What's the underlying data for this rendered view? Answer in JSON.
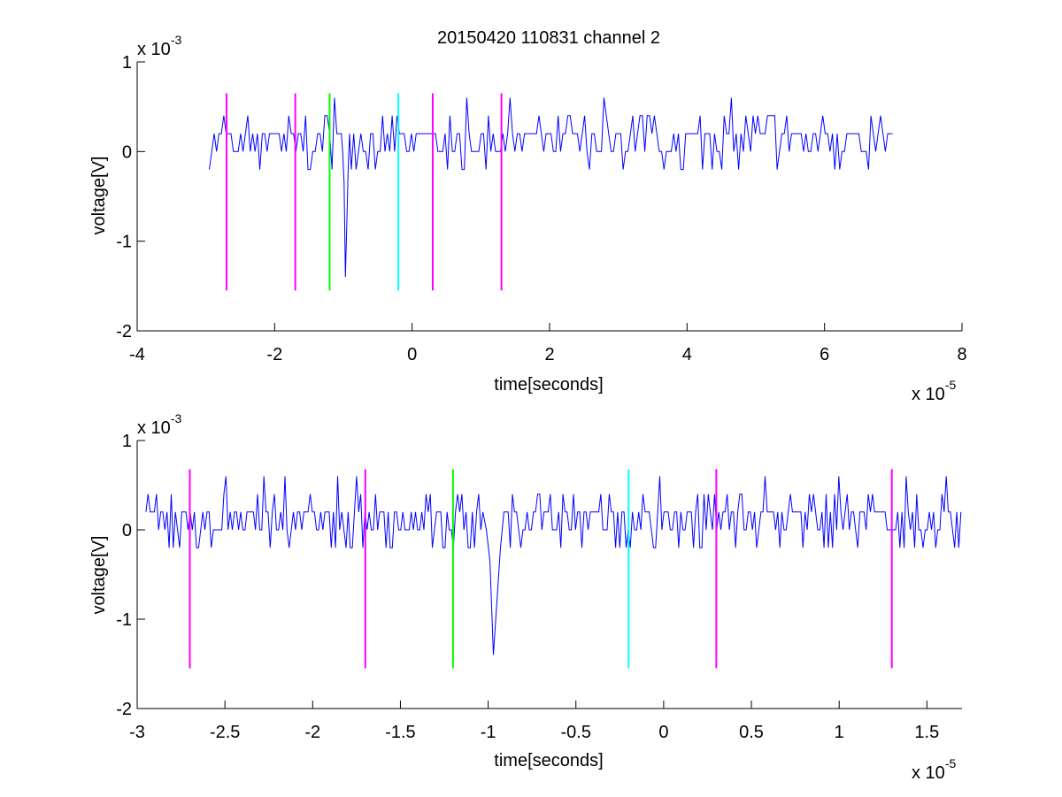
{
  "figure_title": "20150420 110831 channel 2",
  "chart_data": [
    {
      "type": "line",
      "title": "20150420 110831 channel 2",
      "xlabel": "time[seconds]",
      "ylabel": "voltage[V]",
      "x_exponent_label": "x 10",
      "x_exponent_power": "-5",
      "y_exponent_label": "x 10",
      "y_exponent_power": "-3",
      "xlim": [
        -4,
        8
      ],
      "ylim": [
        -2,
        1
      ],
      "xticks": [
        -4,
        -2,
        0,
        2,
        4,
        6,
        8
      ],
      "xtick_labels": [
        "-4",
        "-2",
        "0",
        "2",
        "4",
        "6",
        "8"
      ],
      "yticks": [
        -2,
        -1,
        0,
        1
      ],
      "ytick_labels": [
        "-2",
        "-1",
        "0",
        "1"
      ],
      "grid": false,
      "signal": {
        "color": "#0000ff",
        "x_start": -2.95,
        "x_end": 7.0,
        "spike_x": -0.97,
        "spike_min": -1.4
      },
      "markers": [
        {
          "x": -2.7,
          "color": "#ff00ff"
        },
        {
          "x": -1.7,
          "color": "#ff00ff"
        },
        {
          "x": -1.2,
          "color": "#00ff00"
        },
        {
          "x": -0.2,
          "color": "#00ffff"
        },
        {
          "x": 0.3,
          "color": "#ff00ff"
        },
        {
          "x": 1.3,
          "color": "#ff00ff"
        }
      ],
      "marker_range": [
        -1.55,
        0.65
      ]
    },
    {
      "type": "line",
      "xlabel": "time[seconds]",
      "ylabel": "voltage[V]",
      "x_exponent_label": "x 10",
      "x_exponent_power": "-5",
      "y_exponent_label": "x 10",
      "y_exponent_power": "-3",
      "xlim": [
        -3,
        1.7
      ],
      "ylim": [
        -2,
        1
      ],
      "xticks": [
        -3,
        -2.5,
        -2,
        -1.5,
        -1,
        -0.5,
        0,
        0.5,
        1,
        1.5
      ],
      "xtick_labels": [
        "-3",
        "-2.5",
        "-2",
        "-1.5",
        "-1",
        "-0.5",
        "0",
        "0.5",
        "1",
        "1.5"
      ],
      "yticks": [
        -2,
        -1,
        0,
        1
      ],
      "ytick_labels": [
        "-2",
        "-1",
        "0",
        "1"
      ],
      "grid": false,
      "signal": {
        "color": "#0000ff",
        "x_start": -2.95,
        "x_end": 1.7,
        "spike_x": -0.97,
        "spike_min": -1.4
      },
      "markers": [
        {
          "x": -2.7,
          "color": "#ff00ff"
        },
        {
          "x": -1.7,
          "color": "#ff00ff"
        },
        {
          "x": -1.2,
          "color": "#00ff00"
        },
        {
          "x": -0.2,
          "color": "#00ffff"
        },
        {
          "x": 0.3,
          "color": "#ff00ff"
        },
        {
          "x": 1.3,
          "color": "#ff00ff"
        }
      ],
      "marker_range": [
        -1.55,
        0.68
      ]
    }
  ]
}
